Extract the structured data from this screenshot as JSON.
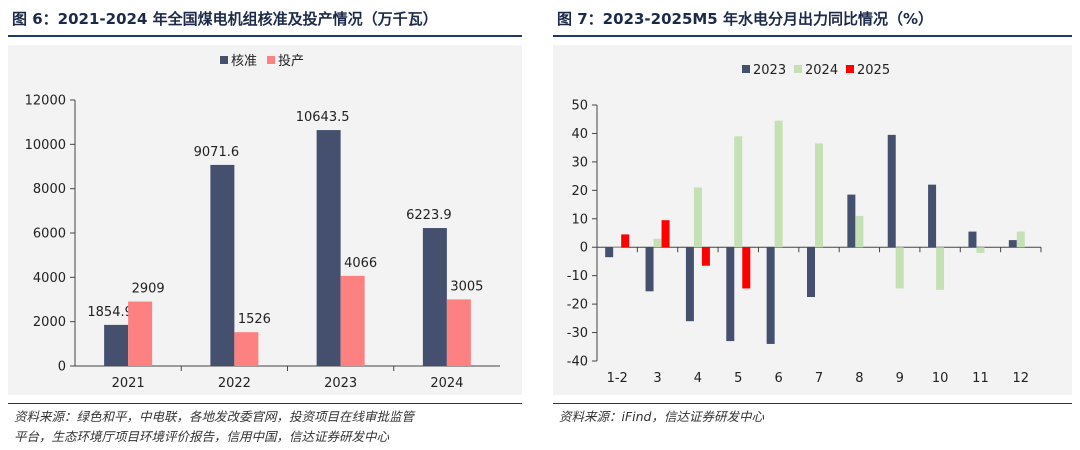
{
  "left": {
    "figure_title": "图 6：2021-2024 年全国煤电机组核准及投产情况（万千瓦）",
    "source_line1": "资料来源：绿色和平，中电联，各地发改委官网，投资项目在线审批监管",
    "source_line2": "平台，生态环境厅项目环境评价报告，信用中国，信达证券研发中心",
    "colors": {
      "核准": "#44506e",
      "投产": "#fd8181"
    },
    "chart_data": {
      "type": "bar",
      "categories": [
        "2021",
        "2022",
        "2023",
        "2024"
      ],
      "series": [
        {
          "name": "核准",
          "values": [
            1854.9,
            9071.6,
            10643.5,
            6223.9
          ],
          "labels": [
            "1854.9",
            "9071.6",
            "10643.5",
            "6223.9"
          ]
        },
        {
          "name": "投产",
          "values": [
            2909,
            1526,
            4066,
            3005
          ],
          "labels": [
            "2909",
            "1526",
            "4066",
            "3005"
          ]
        }
      ],
      "yticks": [
        "0",
        "2000",
        "4000",
        "6000",
        "8000",
        "10000",
        "12000"
      ],
      "ylim": [
        0,
        12000
      ],
      "legend": "top-center",
      "grid": false
    }
  },
  "right": {
    "figure_title": "图 7：2023-2025M5 年水电分月出力同比情况（%）",
    "source_line1": "资料来源：iFind，信达证券研发中心",
    "colors": {
      "2023": "#44506e",
      "2024": "#c5e0b4",
      "2025": "#ff0000"
    },
    "chart_data": {
      "type": "bar",
      "categories": [
        "1-2",
        "3",
        "4",
        "5",
        "6",
        "7",
        "8",
        "9",
        "10",
        "11",
        "12"
      ],
      "series": [
        {
          "name": "2023",
          "values": [
            -3.5,
            -15.5,
            -26,
            -33,
            -34,
            -17.5,
            18.5,
            39.5,
            22,
            5.5,
            2.5
          ]
        },
        {
          "name": "2024",
          "values": [
            0,
            3,
            21,
            39,
            44.5,
            36.5,
            11,
            -14.5,
            -15,
            -2,
            5.5
          ]
        },
        {
          "name": "2025",
          "values": [
            4.5,
            9.5,
            -6.5,
            -14.5,
            null,
            null,
            null,
            null,
            null,
            null,
            null
          ]
        }
      ],
      "yticks": [
        "-40",
        "-30",
        "-20",
        "-10",
        "0",
        "10",
        "20",
        "30",
        "40",
        "50"
      ],
      "ylim": [
        -40,
        50
      ],
      "legend": "top-center",
      "grid": false
    }
  }
}
